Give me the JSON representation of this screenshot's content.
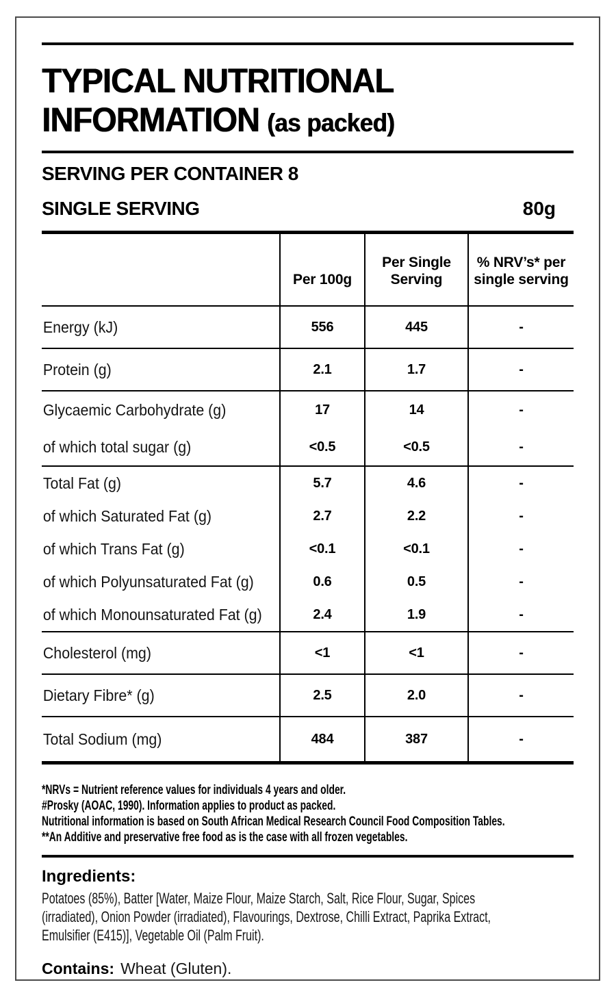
{
  "label": {
    "title_line1": "TYPICAL NUTRITIONAL",
    "title_line2": "INFORMATION",
    "title_note": "(as packed)",
    "servings_per_container": "SERVING PER CONTAINER 8",
    "single_serving_label": "SINGLE SERVING",
    "single_serving_value": "80g"
  },
  "table": {
    "column_headers": {
      "per_100g": "Per 100g",
      "per_serving": "Per Single\nServing",
      "nrv": "% NRV’s* per\nsingle serving"
    },
    "rows": [
      {
        "label": "Energy (kJ)",
        "per_100g": "556",
        "per_serving": "445",
        "nrv": "-"
      },
      {
        "label": "Protein (g)",
        "per_100g": "2.1",
        "per_serving": "1.7",
        "nrv": "-"
      },
      {
        "label": "Glycaemic Carbohydrate (g)",
        "per_100g": "17",
        "per_serving": "14",
        "nrv": "-"
      },
      {
        "label": "of which total sugar (g)",
        "per_100g": "<0.5",
        "per_serving": "<0.5",
        "nrv": "-"
      },
      {
        "label": "Total Fat (g)",
        "per_100g": "5.7",
        "per_serving": "4.6",
        "nrv": "-"
      },
      {
        "label": "of which Saturated Fat (g)",
        "per_100g": "2.7",
        "per_serving": "2.2",
        "nrv": "-"
      },
      {
        "label": "of which Trans Fat (g)",
        "per_100g": "<0.1",
        "per_serving": "<0.1",
        "nrv": "-"
      },
      {
        "label": "of which Polyunsaturated Fat (g)",
        "per_100g": "0.6",
        "per_serving": "0.5",
        "nrv": "-"
      },
      {
        "label": "of which Monounsaturated Fat (g)",
        "per_100g": "2.4",
        "per_serving": "1.9",
        "nrv": "-"
      },
      {
        "label": "Cholesterol (mg)",
        "per_100g": "<1",
        "per_serving": "<1",
        "nrv": "-"
      },
      {
        "label": "Dietary Fibre* (g)",
        "per_100g": "2.5",
        "per_serving": "2.0",
        "nrv": "-"
      },
      {
        "label": "Total Sodium (mg)",
        "per_100g": "484",
        "per_serving": "387",
        "nrv": "-"
      }
    ]
  },
  "footnotes": [
    "*NRVs = Nutrient reference values for individuals 4 years and older.",
    "#Prosky (AOAC, 1990). Information applies to product as packed.",
    "Nutritional information is based on South African Medical Research Council Food Composition Tables.",
    "**An Additive and preservative free food as is the case with all frozen vegetables."
  ],
  "ingredients": {
    "heading": "Ingredients:",
    "lines": [
      "Potatoes (85%), Batter [Water, Maize Flour, Maize Starch, Salt, Rice Flour, Sugar, Spices",
      "(irradiated), Onion Powder (irradiated), Flavourings, Dextrose, Chilli Extract, Paprika Extract,",
      "Emulsifier (E415)], Vegetable Oil (Palm Fruit)."
    ],
    "contains_label": "Contains:",
    "contains_value": "Wheat (Gluten)."
  },
  "colors": {
    "ink": "#000000",
    "frame_border": "#4a4a4a",
    "background": "#ffffff"
  }
}
